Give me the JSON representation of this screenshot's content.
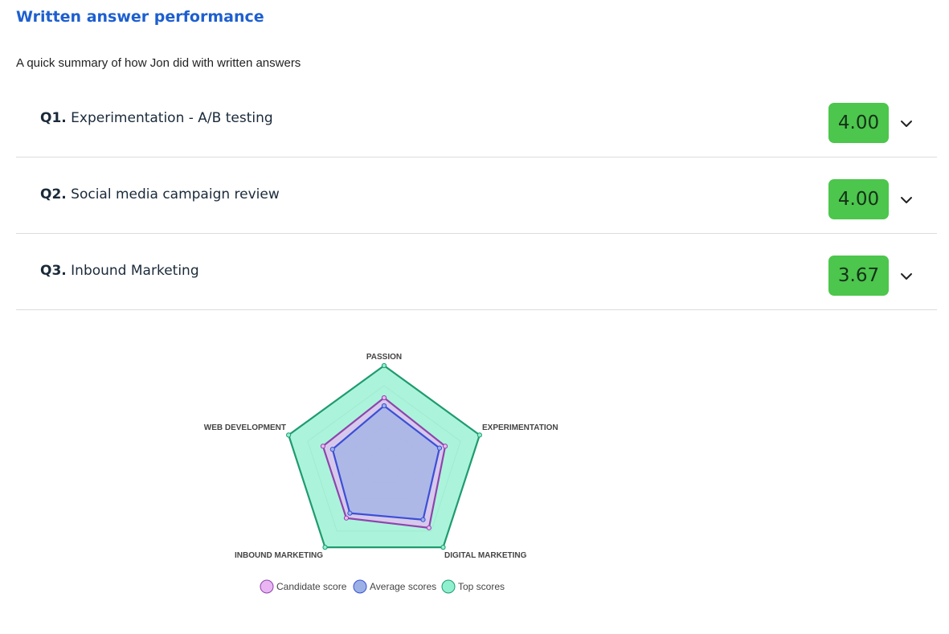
{
  "page": {
    "title": "Written answer performance",
    "subtitle": "A quick summary of how Jon did with written answers"
  },
  "questions": [
    {
      "number": "Q1.",
      "title": "Experimentation - A/B testing",
      "score": "4.00",
      "score_color": "#4cc64c"
    },
    {
      "number": "Q2.",
      "title": "Social media campaign review",
      "score": "4.00",
      "score_color": "#4cc64c"
    },
    {
      "number": "Q3.",
      "title": "Inbound Marketing",
      "score": "3.67",
      "score_color": "#4cc64c"
    }
  ],
  "chart_data": {
    "type": "radar",
    "axes": [
      "PASSION",
      "EXPERIMENTATION",
      "DIGITAL MARKETING",
      "INBOUND MARKETING",
      "WEB DEVELOPMENT"
    ],
    "scale_max": 5,
    "series": [
      {
        "name": "Candidate score",
        "values": [
          3.4,
          3.2,
          3.8,
          3.2,
          3.2
        ],
        "stroke": "#8e44ad",
        "fill": "#e9b6f3"
      },
      {
        "name": "Average scores",
        "values": [
          3.0,
          2.9,
          3.3,
          2.9,
          2.7
        ],
        "stroke": "#3b4fd6",
        "fill": "#9bb1e6"
      },
      {
        "name": "Top scores",
        "values": [
          5.0,
          5.0,
          5.0,
          5.0,
          5.0
        ],
        "stroke": "#1f9b6e",
        "fill": "#8ff0cf"
      }
    ],
    "legend": "bottom"
  }
}
